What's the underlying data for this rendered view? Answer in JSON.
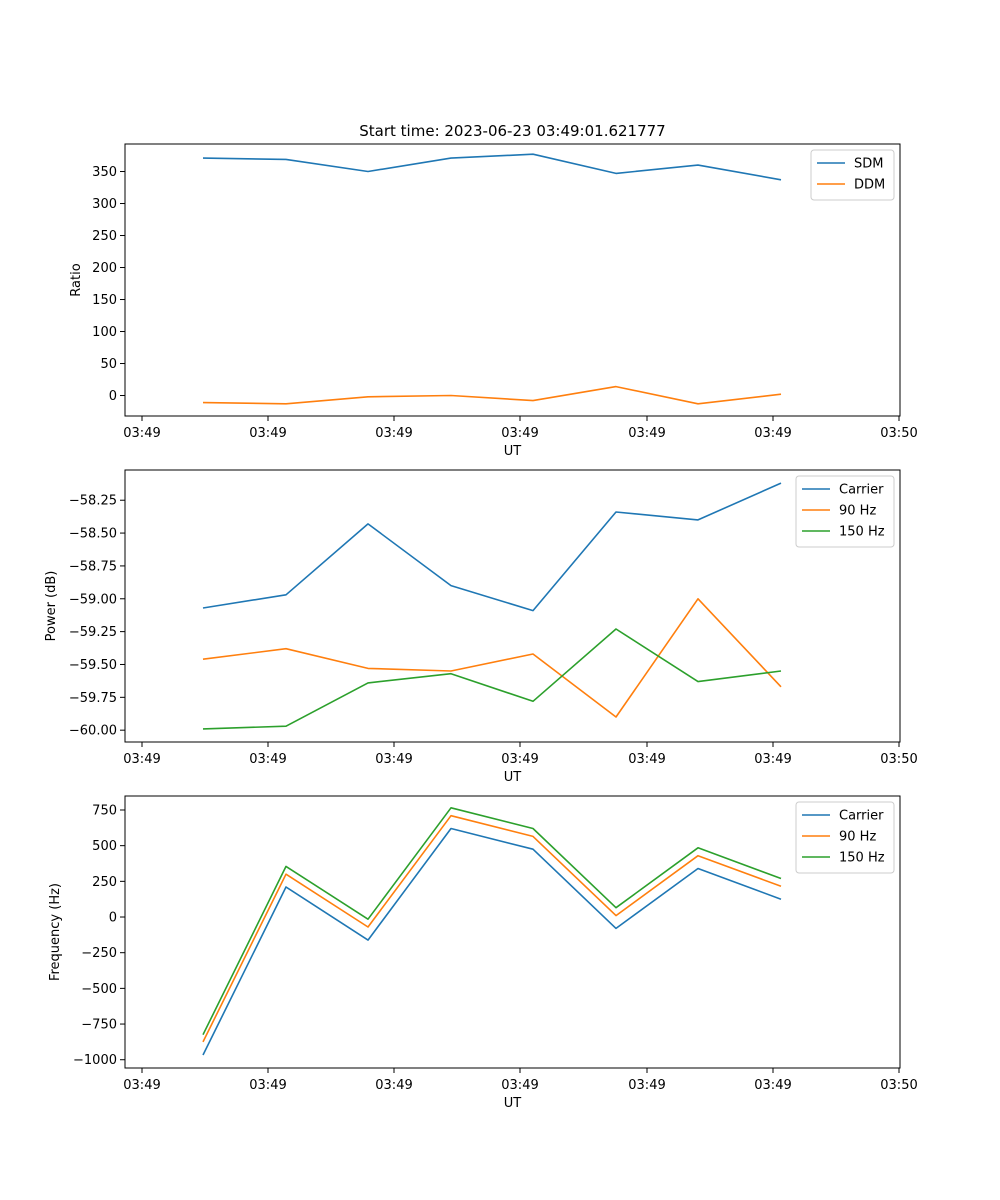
{
  "figure": {
    "title": "Start time: 2023-06-23 03:49:01.621777"
  },
  "chart_data": [
    {
      "type": "line",
      "xlabel": "UT",
      "ylabel": "Ratio",
      "x_tick_labels": [
        "03:49",
        "03:49",
        "03:49",
        "03:49",
        "03:49",
        "03:49",
        "03:50"
      ],
      "yticks": [
        0,
        50,
        100,
        150,
        200,
        250,
        300,
        350
      ],
      "ylim": [
        -32,
        393
      ],
      "legend_position": "upper-right",
      "grid": false,
      "series": [
        {
          "name": "SDM",
          "color": "#1f77b4",
          "values": [
            371,
            369,
            350,
            371,
            377,
            347,
            360,
            337
          ]
        },
        {
          "name": "DDM",
          "color": "#ff7f0e",
          "values": [
            -11,
            -13,
            -2,
            0,
            -8,
            14,
            -13,
            2
          ]
        }
      ]
    },
    {
      "type": "line",
      "xlabel": "UT",
      "ylabel": "Power (dB)",
      "x_tick_labels": [
        "03:49",
        "03:49",
        "03:49",
        "03:49",
        "03:49",
        "03:49",
        "03:50"
      ],
      "yticks": [
        -60.0,
        -59.75,
        -59.5,
        -59.25,
        -59.0,
        -58.75,
        -58.5,
        -58.25
      ],
      "ytick_labels": [
        "−60.00",
        "−59.75",
        "−59.50",
        "−59.25",
        "−59.00",
        "−58.75",
        "−58.50",
        "−58.25"
      ],
      "ylim": [
        -60.09,
        -58.02
      ],
      "legend_position": "upper-right",
      "grid": false,
      "series": [
        {
          "name": "Carrier",
          "color": "#1f77b4",
          "values": [
            -59.07,
            -58.97,
            -58.43,
            -58.9,
            -59.09,
            -58.34,
            -58.4,
            -58.12
          ]
        },
        {
          "name": "90 Hz",
          "color": "#ff7f0e",
          "values": [
            -59.46,
            -59.38,
            -59.53,
            -59.55,
            -59.42,
            -59.9,
            -59.0,
            -59.67
          ]
        },
        {
          "name": "150 Hz",
          "color": "#2ca02c",
          "values": [
            -59.99,
            -59.97,
            -59.64,
            -59.57,
            -59.78,
            -59.23,
            -59.63,
            -59.55
          ]
        }
      ]
    },
    {
      "type": "line",
      "xlabel": "UT",
      "ylabel": "Frequency (Hz)",
      "x_tick_labels": [
        "03:49",
        "03:49",
        "03:49",
        "03:49",
        "03:49",
        "03:49",
        "03:50"
      ],
      "yticks": [
        -1000,
        -750,
        -500,
        -250,
        0,
        250,
        500,
        750
      ],
      "ytick_labels": [
        "−1000",
        "−750",
        "−500",
        "−250",
        "0",
        "250",
        "500",
        "750"
      ],
      "ylim": [
        -1058,
        848
      ],
      "legend_position": "upper-right",
      "grid": false,
      "series": [
        {
          "name": "Carrier",
          "color": "#1f77b4",
          "values": [
            -967,
            210,
            -162,
            620,
            475,
            -80,
            340,
            125
          ]
        },
        {
          "name": "90 Hz",
          "color": "#ff7f0e",
          "values": [
            -875,
            300,
            -70,
            710,
            565,
            10,
            430,
            215
          ]
        },
        {
          "name": "150 Hz",
          "color": "#2ca02c",
          "values": [
            -825,
            355,
            -15,
            765,
            620,
            65,
            485,
            270
          ]
        }
      ]
    }
  ]
}
